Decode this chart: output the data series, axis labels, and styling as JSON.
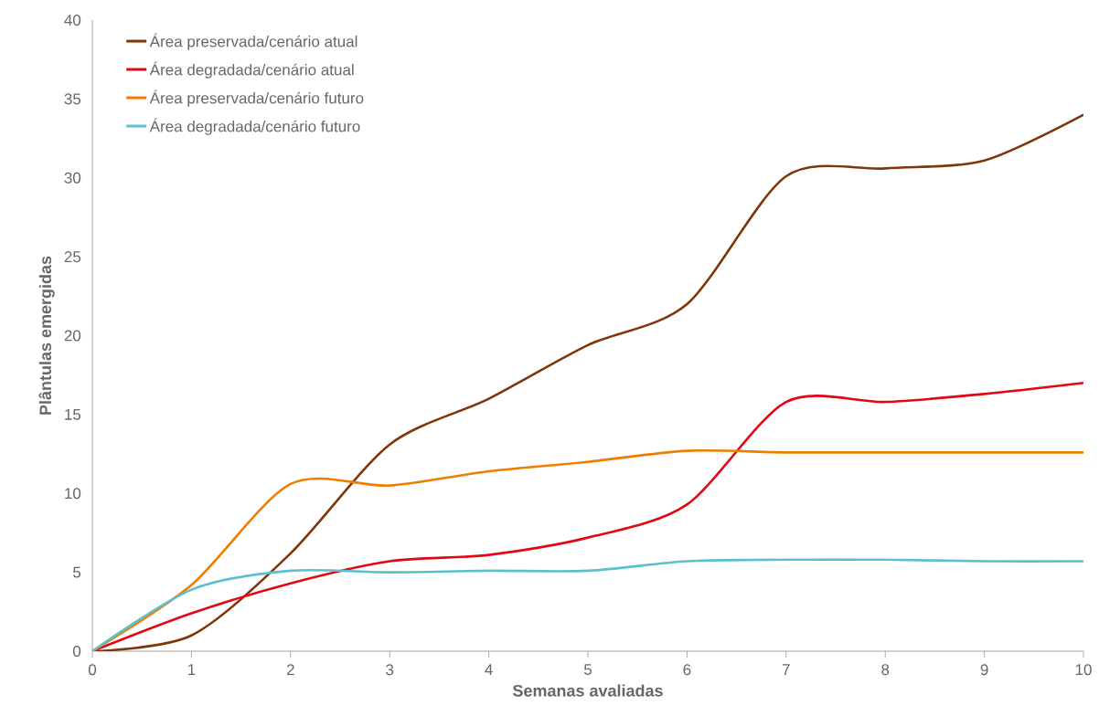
{
  "chart_data": {
    "type": "line",
    "xlabel": "Semanas avaliadas",
    "ylabel": "Plântulas emergidas",
    "x": [
      0,
      1,
      2,
      3,
      4,
      5,
      6,
      7,
      8,
      9,
      10
    ],
    "series": [
      {
        "name": "Área preservada/cenário atual",
        "color": "#7f3608",
        "values": [
          0,
          1.0,
          6.2,
          13.1,
          16.0,
          19.4,
          22.0,
          30.1,
          30.6,
          31.1,
          34.0
        ]
      },
      {
        "name": "Área degradada/cenário atual",
        "color": "#e30613",
        "values": [
          0,
          2.4,
          4.3,
          5.7,
          6.1,
          7.2,
          9.3,
          15.8,
          15.8,
          16.3,
          17.0
        ]
      },
      {
        "name": "Área preservada/cenário futuro",
        "color": "#ef7d00",
        "values": [
          0,
          4.2,
          10.6,
          10.5,
          11.4,
          12.0,
          12.7,
          12.6,
          12.6,
          12.6,
          12.6
        ]
      },
      {
        "name": "Área degradada/cenário futuro",
        "color": "#5bc0ce",
        "values": [
          0,
          3.9,
          5.1,
          5.0,
          5.1,
          5.1,
          5.7,
          5.8,
          5.8,
          5.7,
          5.7
        ]
      }
    ],
    "xlim": [
      0,
      10
    ],
    "ylim": [
      0,
      40
    ],
    "xticks": [
      0,
      1,
      2,
      3,
      4,
      5,
      6,
      7,
      8,
      9,
      10
    ],
    "yticks": [
      0,
      5,
      10,
      15,
      20,
      25,
      30,
      35,
      40
    ],
    "grid": false,
    "legend": "top left",
    "marker": "none",
    "line_style": "solid"
  }
}
